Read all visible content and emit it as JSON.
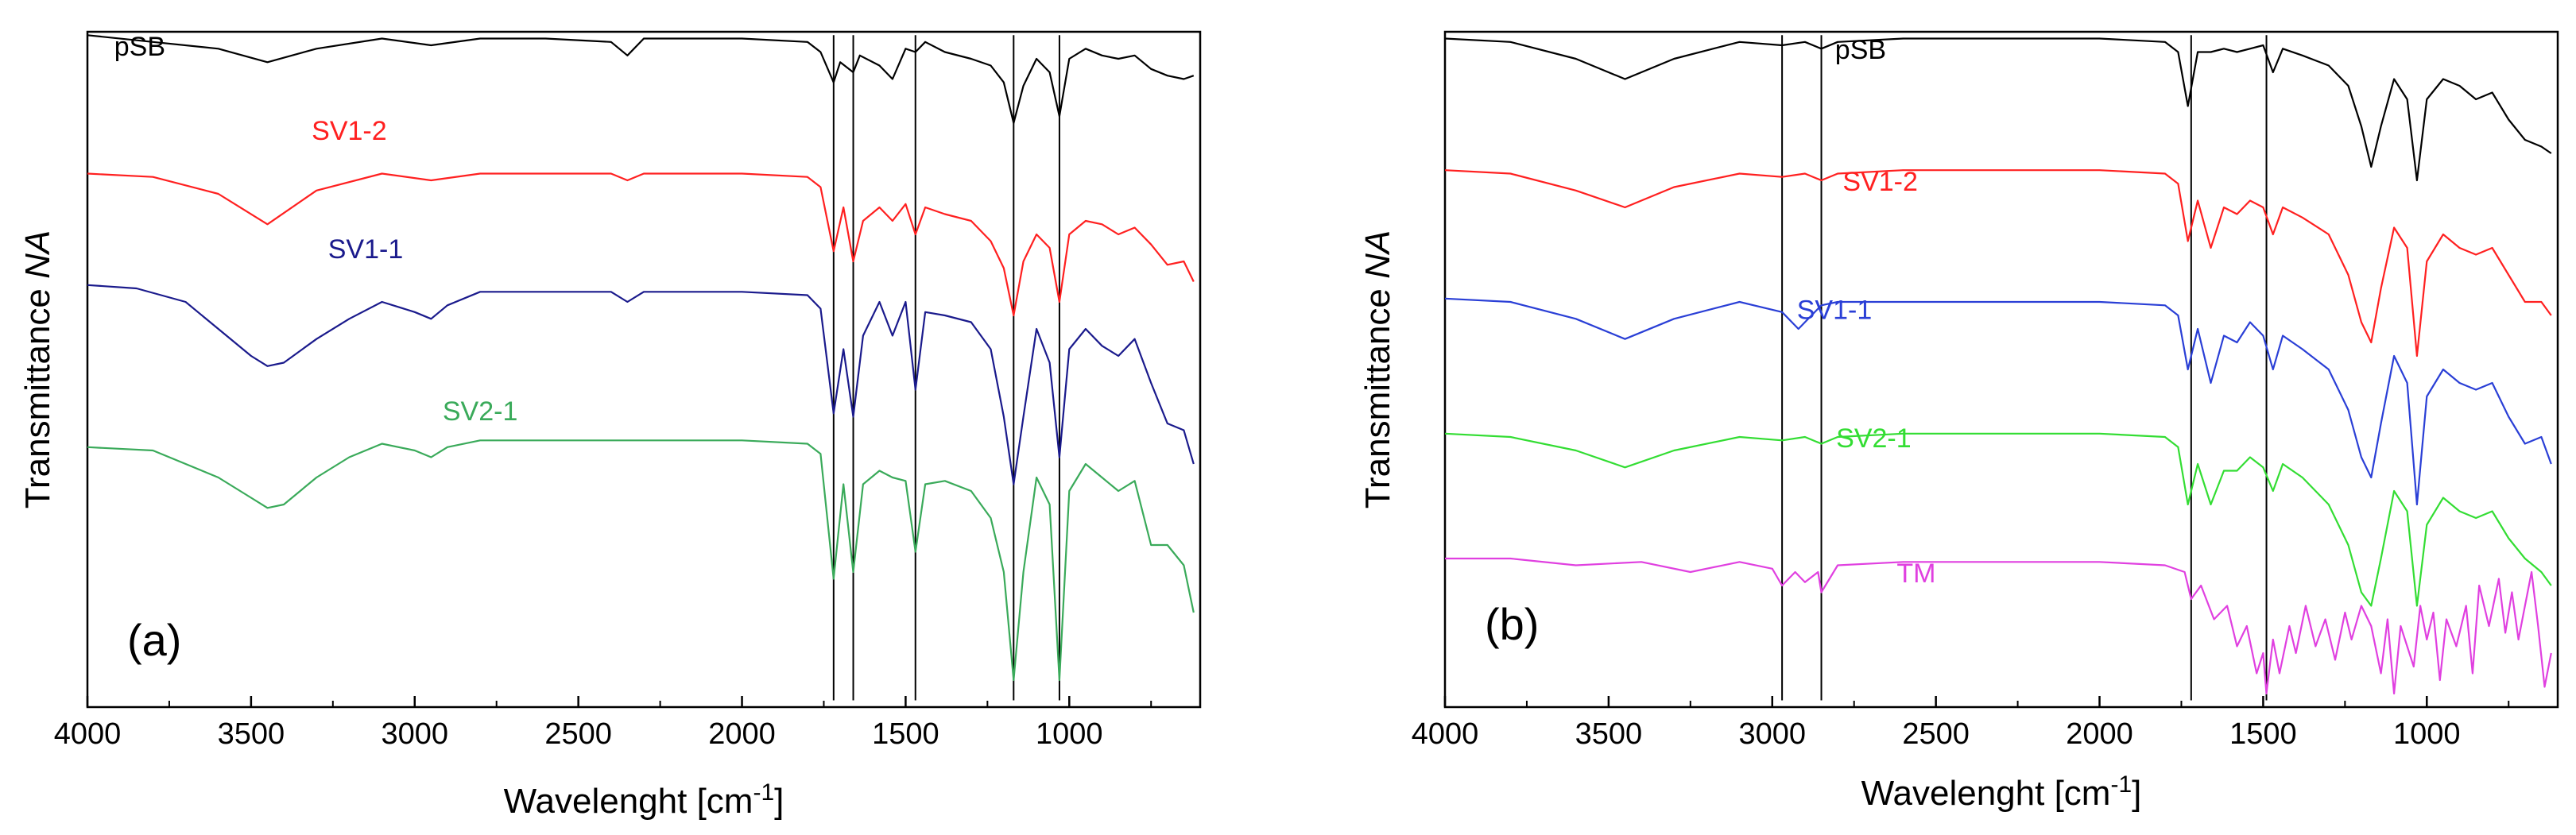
{
  "chart_data": [
    {
      "type": "line",
      "panel_label": "(a)",
      "xlabel": "Wavelenght [cm",
      "xlabel_sup": "-1",
      "xlabel_end": "]",
      "ylabel": "Transmittance ",
      "ylabel_unit": "NA",
      "xlim": [
        4000,
        600
      ],
      "x_ticks": [
        4000,
        3500,
        3000,
        2500,
        2000,
        1500,
        1000
      ],
      "x_tick_labels": [
        "4000",
        "3500",
        "3000",
        "2500",
        "2000",
        "1500",
        "1000"
      ],
      "reference_lines": [
        1720,
        1660,
        1470,
        1170,
        1030
      ],
      "series": [
        {
          "name": "pSB",
          "color": "#000000",
          "label_at": [
            3840,
            0.965
          ],
          "x": [
            4000,
            3800,
            3600,
            3450,
            3300,
            3100,
            2950,
            2800,
            2600,
            2400,
            2350,
            2300,
            2000,
            1800,
            1760,
            1720,
            1700,
            1660,
            1640,
            1580,
            1540,
            1500,
            1470,
            1440,
            1380,
            1300,
            1240,
            1200,
            1170,
            1140,
            1100,
            1060,
            1030,
            1000,
            950,
            900,
            850,
            800,
            750,
            700,
            650,
            620
          ],
          "y": [
            0.995,
            0.985,
            0.975,
            0.955,
            0.975,
            0.99,
            0.98,
            0.99,
            0.99,
            0.985,
            0.965,
            0.99,
            0.99,
            0.985,
            0.97,
            0.925,
            0.955,
            0.94,
            0.965,
            0.95,
            0.93,
            0.975,
            0.97,
            0.985,
            0.97,
            0.96,
            0.95,
            0.925,
            0.865,
            0.92,
            0.96,
            0.94,
            0.875,
            0.96,
            0.975,
            0.965,
            0.96,
            0.965,
            0.945,
            0.935,
            0.93,
            0.935
          ]
        },
        {
          "name": "SV1-2",
          "color": "#ff2020",
          "label_at": [
            3200,
            0.84
          ],
          "x": [
            4000,
            3800,
            3600,
            3450,
            3300,
            3100,
            2950,
            2800,
            2600,
            2400,
            2350,
            2300,
            2000,
            1800,
            1760,
            1720,
            1690,
            1660,
            1630,
            1580,
            1540,
            1500,
            1470,
            1440,
            1380,
            1300,
            1240,
            1200,
            1170,
            1140,
            1100,
            1060,
            1030,
            1000,
            950,
            900,
            850,
            800,
            750,
            700,
            650,
            620
          ],
          "y": [
            0.79,
            0.785,
            0.76,
            0.715,
            0.765,
            0.79,
            0.78,
            0.79,
            0.79,
            0.79,
            0.78,
            0.79,
            0.79,
            0.785,
            0.77,
            0.675,
            0.74,
            0.66,
            0.72,
            0.74,
            0.72,
            0.745,
            0.7,
            0.74,
            0.73,
            0.72,
            0.69,
            0.65,
            0.58,
            0.66,
            0.7,
            0.68,
            0.6,
            0.7,
            0.72,
            0.715,
            0.7,
            0.71,
            0.685,
            0.655,
            0.66,
            0.63
          ]
        },
        {
          "name": "SV1-1",
          "color": "#1a1a8c",
          "label_at": [
            3150,
            0.665
          ],
          "x": [
            4000,
            3850,
            3700,
            3600,
            3500,
            3450,
            3400,
            3300,
            3200,
            3100,
            3000,
            2950,
            2900,
            2800,
            2600,
            2400,
            2350,
            2300,
            2000,
            1800,
            1760,
            1720,
            1690,
            1660,
            1630,
            1580,
            1540,
            1500,
            1470,
            1440,
            1380,
            1300,
            1240,
            1200,
            1170,
            1140,
            1100,
            1060,
            1030,
            1000,
            950,
            900,
            850,
            800,
            750,
            700,
            650,
            620
          ],
          "y": [
            0.625,
            0.62,
            0.6,
            0.56,
            0.52,
            0.505,
            0.51,
            0.545,
            0.575,
            0.6,
            0.585,
            0.575,
            0.595,
            0.615,
            0.615,
            0.615,
            0.6,
            0.615,
            0.615,
            0.61,
            0.59,
            0.435,
            0.53,
            0.43,
            0.55,
            0.6,
            0.55,
            0.6,
            0.47,
            0.585,
            0.58,
            0.57,
            0.53,
            0.43,
            0.33,
            0.43,
            0.56,
            0.51,
            0.37,
            0.53,
            0.56,
            0.535,
            0.52,
            0.545,
            0.48,
            0.42,
            0.41,
            0.36
          ]
        },
        {
          "name": "SV2-1",
          "color": "#3aaa5a",
          "label_at": [
            2800,
            0.425
          ],
          "x": [
            4000,
            3800,
            3600,
            3500,
            3450,
            3400,
            3300,
            3200,
            3100,
            3000,
            2950,
            2900,
            2800,
            2600,
            2400,
            2000,
            1800,
            1760,
            1720,
            1690,
            1660,
            1630,
            1580,
            1540,
            1500,
            1470,
            1440,
            1380,
            1300,
            1240,
            1200,
            1170,
            1140,
            1100,
            1060,
            1030,
            1000,
            950,
            900,
            850,
            800,
            750,
            700,
            650,
            620
          ],
          "y": [
            0.385,
            0.38,
            0.34,
            0.31,
            0.295,
            0.3,
            0.34,
            0.37,
            0.39,
            0.38,
            0.37,
            0.385,
            0.395,
            0.395,
            0.395,
            0.395,
            0.39,
            0.375,
            0.19,
            0.33,
            0.2,
            0.33,
            0.35,
            0.34,
            0.335,
            0.23,
            0.33,
            0.335,
            0.32,
            0.28,
            0.2,
            0.04,
            0.2,
            0.34,
            0.3,
            0.04,
            0.32,
            0.36,
            0.34,
            0.32,
            0.335,
            0.24,
            0.24,
            0.21,
            0.14
          ]
        }
      ]
    },
    {
      "type": "line",
      "panel_label": "(b)",
      "xlabel": "Wavelenght [cm",
      "xlabel_sup": "-1",
      "xlabel_end": "]",
      "ylabel": "Transmittance ",
      "ylabel_unit": "NA",
      "xlim": [
        4000,
        600
      ],
      "x_ticks": [
        4000,
        3500,
        3000,
        2500,
        2000,
        1500,
        1000
      ],
      "x_tick_labels": [
        "4000",
        "3500",
        "3000",
        "2500",
        "2000",
        "1500",
        "1000"
      ],
      "reference_lines": [
        2970,
        2850,
        1720,
        1490
      ],
      "series": [
        {
          "name": "pSB",
          "color": "#000000",
          "label_at": [
            2730,
            0.96
          ],
          "x": [
            4000,
            3800,
            3600,
            3450,
            3300,
            3100,
            2970,
            2900,
            2850,
            2800,
            2600,
            2400,
            2000,
            1800,
            1760,
            1730,
            1700,
            1660,
            1620,
            1580,
            1540,
            1500,
            1470,
            1440,
            1380,
            1300,
            1240,
            1200,
            1170,
            1140,
            1100,
            1060,
            1030,
            1000,
            950,
            900,
            850,
            800,
            750,
            700,
            650,
            620
          ],
          "y": [
            0.99,
            0.985,
            0.96,
            0.93,
            0.96,
            0.985,
            0.98,
            0.985,
            0.975,
            0.985,
            0.99,
            0.99,
            0.99,
            0.985,
            0.97,
            0.89,
            0.97,
            0.97,
            0.975,
            0.97,
            0.975,
            0.98,
            0.94,
            0.975,
            0.965,
            0.95,
            0.92,
            0.86,
            0.8,
            0.86,
            0.93,
            0.9,
            0.78,
            0.9,
            0.93,
            0.92,
            0.9,
            0.91,
            0.87,
            0.84,
            0.83,
            0.82
          ]
        },
        {
          "name": "SV1-2",
          "color": "#ff2020",
          "label_at": [
            2670,
            0.765
          ],
          "x": [
            4000,
            3800,
            3600,
            3450,
            3300,
            3100,
            2970,
            2900,
            2850,
            2800,
            2600,
            2400,
            2000,
            1800,
            1760,
            1730,
            1700,
            1660,
            1620,
            1580,
            1540,
            1500,
            1470,
            1440,
            1380,
            1300,
            1240,
            1200,
            1170,
            1140,
            1100,
            1060,
            1030,
            1000,
            950,
            900,
            850,
            800,
            750,
            700,
            650,
            620
          ],
          "y": [
            0.795,
            0.79,
            0.765,
            0.74,
            0.77,
            0.79,
            0.785,
            0.79,
            0.78,
            0.79,
            0.795,
            0.795,
            0.795,
            0.79,
            0.775,
            0.69,
            0.75,
            0.68,
            0.74,
            0.73,
            0.75,
            0.74,
            0.7,
            0.74,
            0.725,
            0.7,
            0.64,
            0.57,
            0.54,
            0.62,
            0.71,
            0.68,
            0.52,
            0.66,
            0.7,
            0.68,
            0.67,
            0.68,
            0.64,
            0.6,
            0.6,
            0.58
          ]
        },
        {
          "name": "SV1-1",
          "color": "#2a3fd6",
          "label_at": [
            2810,
            0.575
          ],
          "x": [
            4000,
            3800,
            3600,
            3450,
            3300,
            3100,
            2970,
            2920,
            2850,
            2800,
            2600,
            2400,
            2000,
            1800,
            1760,
            1730,
            1700,
            1660,
            1620,
            1580,
            1540,
            1500,
            1470,
            1440,
            1380,
            1300,
            1240,
            1200,
            1170,
            1140,
            1100,
            1060,
            1030,
            1000,
            950,
            900,
            850,
            800,
            750,
            700,
            650,
            620
          ],
          "y": [
            0.605,
            0.6,
            0.575,
            0.545,
            0.575,
            0.6,
            0.585,
            0.56,
            0.595,
            0.6,
            0.6,
            0.6,
            0.6,
            0.595,
            0.58,
            0.5,
            0.56,
            0.48,
            0.55,
            0.54,
            0.57,
            0.55,
            0.5,
            0.55,
            0.53,
            0.5,
            0.44,
            0.37,
            0.34,
            0.42,
            0.52,
            0.48,
            0.3,
            0.46,
            0.5,
            0.48,
            0.47,
            0.48,
            0.43,
            0.39,
            0.4,
            0.36
          ]
        },
        {
          "name": "SV2-1",
          "color": "#33dd33",
          "label_at": [
            2690,
            0.385
          ],
          "x": [
            4000,
            3800,
            3600,
            3450,
            3300,
            3100,
            2970,
            2900,
            2850,
            2800,
            2600,
            2400,
            2000,
            1800,
            1760,
            1730,
            1700,
            1660,
            1620,
            1580,
            1540,
            1500,
            1470,
            1440,
            1380,
            1300,
            1240,
            1200,
            1170,
            1140,
            1100,
            1060,
            1030,
            1000,
            950,
            900,
            850,
            800,
            750,
            700,
            650,
            620
          ],
          "y": [
            0.405,
            0.4,
            0.38,
            0.355,
            0.38,
            0.4,
            0.395,
            0.4,
            0.39,
            0.4,
            0.405,
            0.405,
            0.405,
            0.4,
            0.385,
            0.3,
            0.36,
            0.3,
            0.35,
            0.35,
            0.37,
            0.355,
            0.32,
            0.36,
            0.34,
            0.3,
            0.24,
            0.17,
            0.15,
            0.22,
            0.32,
            0.29,
            0.15,
            0.27,
            0.31,
            0.29,
            0.28,
            0.29,
            0.25,
            0.22,
            0.2,
            0.18
          ]
        },
        {
          "name": "TM",
          "color": "#e040e0",
          "label_at": [
            2560,
            0.185
          ],
          "x": [
            4000,
            3800,
            3600,
            3400,
            3250,
            3100,
            3000,
            2970,
            2930,
            2900,
            2860,
            2850,
            2800,
            2600,
            2400,
            2000,
            1800,
            1740,
            1720,
            1690,
            1650,
            1610,
            1580,
            1550,
            1520,
            1500,
            1490,
            1470,
            1450,
            1420,
            1400,
            1370,
            1340,
            1310,
            1280,
            1250,
            1230,
            1200,
            1170,
            1140,
            1120,
            1100,
            1080,
            1060,
            1040,
            1020,
            1000,
            980,
            960,
            940,
            910,
            880,
            860,
            840,
            810,
            780,
            760,
            740,
            720,
            700,
            680,
            660,
            640,
            620
          ],
          "y": [
            0.22,
            0.22,
            0.21,
            0.215,
            0.2,
            0.215,
            0.205,
            0.18,
            0.2,
            0.185,
            0.2,
            0.17,
            0.21,
            0.215,
            0.215,
            0.215,
            0.21,
            0.2,
            0.16,
            0.18,
            0.13,
            0.15,
            0.09,
            0.12,
            0.05,
            0.08,
            0.02,
            0.1,
            0.05,
            0.12,
            0.08,
            0.15,
            0.09,
            0.13,
            0.07,
            0.14,
            0.1,
            0.15,
            0.12,
            0.05,
            0.13,
            0.02,
            0.12,
            0.09,
            0.06,
            0.15,
            0.1,
            0.14,
            0.04,
            0.13,
            0.09,
            0.15,
            0.05,
            0.18,
            0.12,
            0.19,
            0.11,
            0.17,
            0.1,
            0.15,
            0.2,
            0.12,
            0.03,
            0.08
          ]
        }
      ]
    }
  ]
}
